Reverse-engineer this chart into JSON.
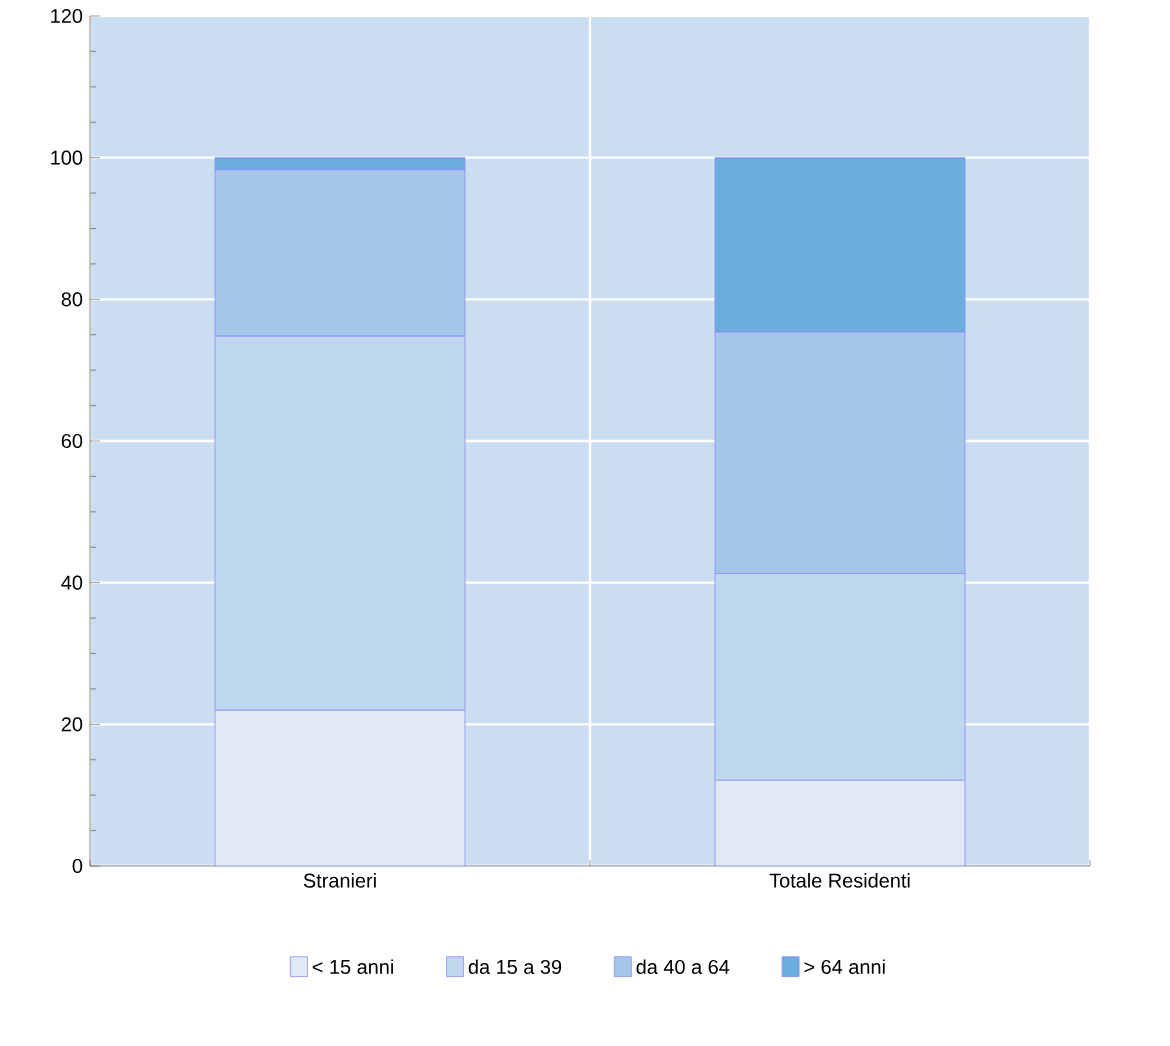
{
  "chart_data": {
    "type": "bar",
    "stacked": true,
    "categories": [
      "Stranieri",
      "Totale Residenti"
    ],
    "series": [
      {
        "name": "< 15 anni",
        "color": "#dfeaf6",
        "values": [
          22.0,
          12.1
        ]
      },
      {
        "name": "da 15 a 39",
        "color": "#c0d8ef",
        "values": [
          52.8,
          29.2
        ]
      },
      {
        "name": "da 40 a 64",
        "color": "#a4c6e8",
        "values": [
          23.5,
          34.1
        ]
      },
      {
        "name": "> 64 anni",
        "color": "#6aaddf",
        "values": [
          1.7,
          24.6
        ]
      }
    ],
    "ylim": [
      0,
      120
    ],
    "yticks": [
      0,
      20,
      40,
      60,
      80,
      100,
      120
    ],
    "grid": true,
    "legend": "bottom"
  }
}
